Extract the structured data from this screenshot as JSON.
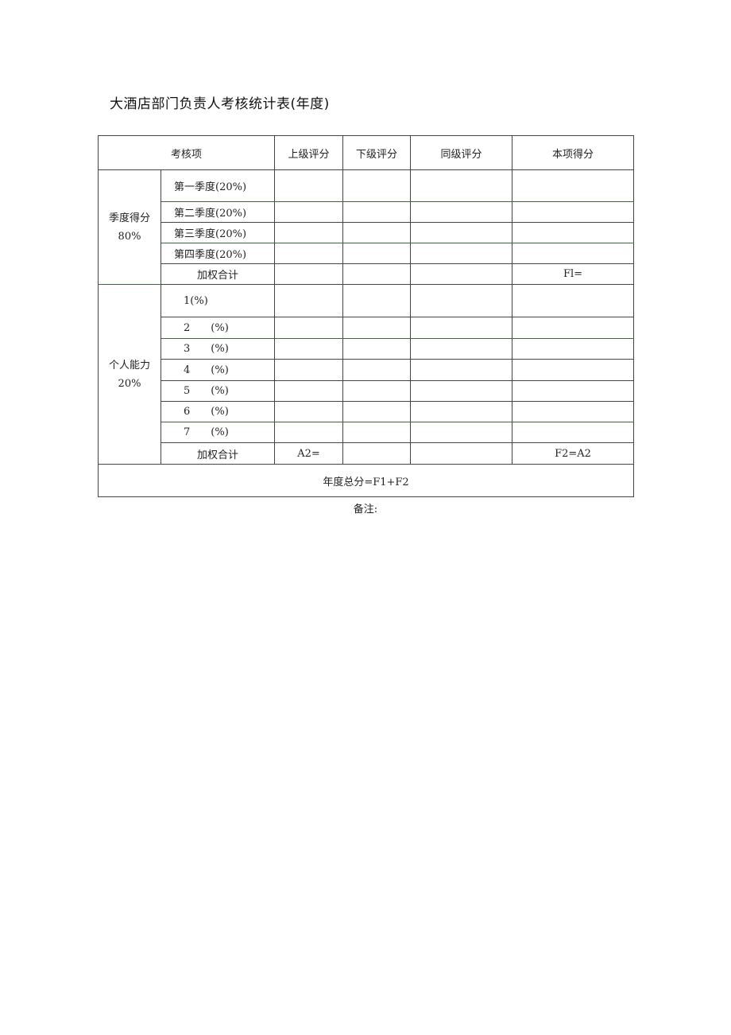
{
  "title": "大酒店部门负责人考核统计表(年度)",
  "header": {
    "item": "考核项",
    "columns": [
      "上级评分",
      "下级评分",
      "同级评分",
      "本项得分"
    ]
  },
  "quarterly": {
    "group_label": "季度得分 80%",
    "rows": [
      "第一季度(20%)",
      "第二季度(20%)",
      "第三季度(20%)",
      "第四季度(20%)"
    ],
    "total_label": "加权合计",
    "total_score": "Fl="
  },
  "ability": {
    "group_label": "个人能力 20%",
    "first_row": "1(%)",
    "rows": [
      {
        "num": "2",
        "pct": "(%)"
      },
      {
        "num": "3",
        "pct": "(%)"
      },
      {
        "num": "4",
        "pct": "(%)"
      },
      {
        "num": "5",
        "pct": "(%)"
      },
      {
        "num": "6",
        "pct": "(%)"
      },
      {
        "num": "7",
        "pct": "(%)"
      }
    ],
    "total_label": "加权合计",
    "total_superior": "A2=",
    "total_score": "F2=A2"
  },
  "annual_total": "年度总分=F1+F2",
  "note": "备注:"
}
